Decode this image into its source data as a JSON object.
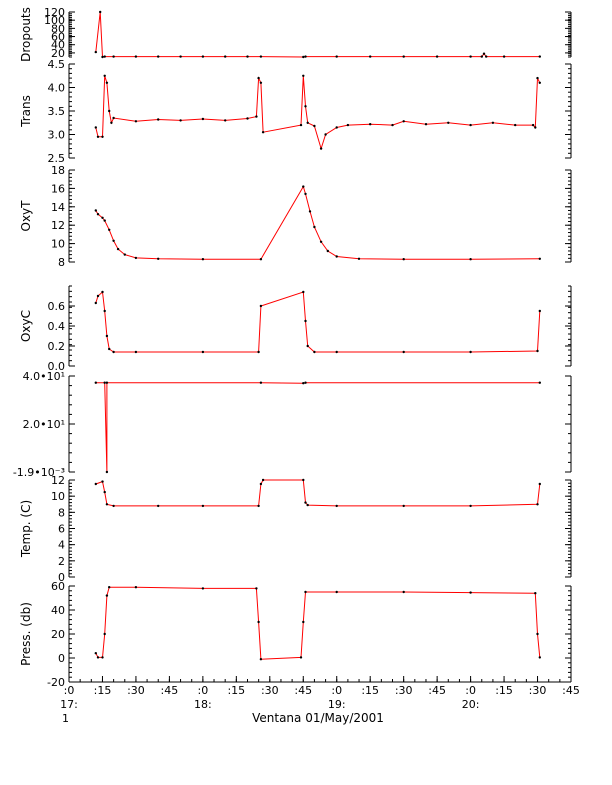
{
  "chart_data": {
    "type": "line",
    "caption": "Ventana 01/May/2001",
    "colors": {
      "trace": "#ff0000",
      "samples": "#000000",
      "axis": "#000000"
    },
    "x_axis": {
      "unit": "time of day",
      "range": [
        "17:00",
        "20:45"
      ],
      "ticks": [
        {
          "t": "17:00",
          "label": ":0",
          "hour_label": "17:"
        },
        {
          "t": "17:15",
          "label": ":15"
        },
        {
          "t": "17:30",
          "label": ":30"
        },
        {
          "t": "17:45",
          "label": ":45"
        },
        {
          "t": "18:00",
          "label": ":0",
          "hour_label": "18:"
        },
        {
          "t": "18:15",
          "label": ":15"
        },
        {
          "t": "18:30",
          "label": ":30"
        },
        {
          "t": "18:45",
          "label": ":45"
        },
        {
          "t": "19:00",
          "label": ":0",
          "hour_label": "19:"
        },
        {
          "t": "19:15",
          "label": ":15"
        },
        {
          "t": "19:30",
          "label": ":30"
        },
        {
          "t": "19:45",
          "label": ":45"
        },
        {
          "t": "20:00",
          "label": ":0",
          "hour_label": "20:"
        },
        {
          "t": "20:15",
          "label": ":15"
        },
        {
          "t": "20:30",
          "label": ":30"
        },
        {
          "t": "20:45",
          "label": ":45"
        }
      ],
      "subscript": "1"
    },
    "panels": [
      {
        "id": "dropouts",
        "ylabel": "Dropouts",
        "ylim": [
          10,
          120
        ],
        "ticks": [
          {
            "v": 120,
            "label": "120"
          },
          {
            "v": 100,
            "label": "100"
          },
          {
            "v": 80,
            "label": "80"
          },
          {
            "v": 60,
            "label": "60"
          },
          {
            "v": 40,
            "label": "40"
          },
          {
            "v": 20,
            "label": "20"
          }
        ],
        "series": [
          {
            "t": "17:12",
            "v": 22
          },
          {
            "t": "17:14",
            "v": 120
          },
          {
            "t": "17:15",
            "v": 10
          },
          {
            "t": "17:16",
            "v": 11
          },
          {
            "t": "17:20",
            "v": 11
          },
          {
            "t": "17:30",
            "v": 11
          },
          {
            "t": "17:40",
            "v": 11
          },
          {
            "t": "17:50",
            "v": 11
          },
          {
            "t": "18:00",
            "v": 11
          },
          {
            "t": "18:10",
            "v": 11
          },
          {
            "t": "18:20",
            "v": 11
          },
          {
            "t": "18:26",
            "v": 11
          },
          {
            "t": "18:45",
            "v": 8
          },
          {
            "t": "18:46",
            "v": 11
          },
          {
            "t": "19:00",
            "v": 11
          },
          {
            "t": "19:15",
            "v": 11
          },
          {
            "t": "19:30",
            "v": 11
          },
          {
            "t": "19:45",
            "v": 11
          },
          {
            "t": "20:00",
            "v": 11
          },
          {
            "t": "20:05",
            "v": 11
          },
          {
            "t": "20:06",
            "v": 18
          },
          {
            "t": "20:07",
            "v": 11
          },
          {
            "t": "20:15",
            "v": 11
          },
          {
            "t": "20:31",
            "v": 11
          }
        ]
      },
      {
        "id": "trans",
        "ylabel": "Trans",
        "ylim": [
          2.5,
          4.5
        ],
        "ticks": [
          {
            "v": 4.5,
            "label": "4.5"
          },
          {
            "v": 4.0,
            "label": "4.0"
          },
          {
            "v": 3.5,
            "label": "3.5"
          },
          {
            "v": 3.0,
            "label": "3.0"
          },
          {
            "v": 2.5,
            "label": "2.5"
          }
        ],
        "series": [
          {
            "t": "17:12",
            "v": 3.15
          },
          {
            "t": "17:13",
            "v": 2.95
          },
          {
            "t": "17:15",
            "v": 2.95
          },
          {
            "t": "17:16",
            "v": 4.25
          },
          {
            "t": "17:17",
            "v": 4.1
          },
          {
            "t": "17:18",
            "v": 3.5
          },
          {
            "t": "17:19",
            "v": 3.25
          },
          {
            "t": "17:20",
            "v": 3.35
          },
          {
            "t": "17:30",
            "v": 3.28
          },
          {
            "t": "17:40",
            "v": 3.32
          },
          {
            "t": "17:50",
            "v": 3.3
          },
          {
            "t": "18:00",
            "v": 3.33
          },
          {
            "t": "18:10",
            "v": 3.3
          },
          {
            "t": "18:20",
            "v": 3.34
          },
          {
            "t": "18:24",
            "v": 3.38
          },
          {
            "t": "18:25",
            "v": 4.2
          },
          {
            "t": "18:26",
            "v": 4.1
          },
          {
            "t": "18:27",
            "v": 3.05
          },
          {
            "t": "18:44",
            "v": 3.2
          },
          {
            "t": "18:45",
            "v": 4.25
          },
          {
            "t": "18:46",
            "v": 3.6
          },
          {
            "t": "18:47",
            "v": 3.25
          },
          {
            "t": "18:50",
            "v": 3.18
          },
          {
            "t": "18:53",
            "v": 2.7
          },
          {
            "t": "18:55",
            "v": 3.0
          },
          {
            "t": "19:00",
            "v": 3.15
          },
          {
            "t": "19:05",
            "v": 3.2
          },
          {
            "t": "19:15",
            "v": 3.22
          },
          {
            "t": "19:25",
            "v": 3.2
          },
          {
            "t": "19:30",
            "v": 3.28
          },
          {
            "t": "19:40",
            "v": 3.22
          },
          {
            "t": "19:50",
            "v": 3.25
          },
          {
            "t": "20:00",
            "v": 3.2
          },
          {
            "t": "20:10",
            "v": 3.25
          },
          {
            "t": "20:20",
            "v": 3.2
          },
          {
            "t": "20:28",
            "v": 3.2
          },
          {
            "t": "20:29",
            "v": 3.15
          },
          {
            "t": "20:30",
            "v": 4.2
          },
          {
            "t": "20:31",
            "v": 4.1
          }
        ]
      },
      {
        "id": "oxyt",
        "ylabel": "OxyT",
        "ylim": [
          8,
          18
        ],
        "ticks": [
          {
            "v": 18,
            "label": "18"
          },
          {
            "v": 16,
            "label": "16"
          },
          {
            "v": 14,
            "label": "14"
          },
          {
            "v": 12,
            "label": "12"
          },
          {
            "v": 10,
            "label": "10"
          },
          {
            "v": 8,
            "label": "8"
          }
        ],
        "series": [
          {
            "t": "17:12",
            "v": 13.6
          },
          {
            "t": "17:13",
            "v": 13.2
          },
          {
            "t": "17:15",
            "v": 12.8
          },
          {
            "t": "17:16",
            "v": 12.5
          },
          {
            "t": "17:18",
            "v": 11.5
          },
          {
            "t": "17:20",
            "v": 10.3
          },
          {
            "t": "17:22",
            "v": 9.4
          },
          {
            "t": "17:25",
            "v": 8.8
          },
          {
            "t": "17:30",
            "v": 8.45
          },
          {
            "t": "17:40",
            "v": 8.35
          },
          {
            "t": "18:00",
            "v": 8.3
          },
          {
            "t": "18:26",
            "v": 8.3
          },
          {
            "t": "18:45",
            "v": 16.2
          },
          {
            "t": "18:46",
            "v": 15.4
          },
          {
            "t": "18:48",
            "v": 13.5
          },
          {
            "t": "18:50",
            "v": 11.8
          },
          {
            "t": "18:53",
            "v": 10.2
          },
          {
            "t": "18:56",
            "v": 9.2
          },
          {
            "t": "19:00",
            "v": 8.6
          },
          {
            "t": "19:10",
            "v": 8.35
          },
          {
            "t": "19:30",
            "v": 8.3
          },
          {
            "t": "20:00",
            "v": 8.3
          },
          {
            "t": "20:31",
            "v": 8.35
          }
        ]
      },
      {
        "id": "oxyc",
        "ylabel": "OxyC",
        "ylim": [
          0,
          0.8
        ],
        "ticks": [
          {
            "v": 0.6,
            "label": "0.6"
          },
          {
            "v": 0.4,
            "label": "0.4"
          },
          {
            "v": 0.2,
            "label": "0.2"
          },
          {
            "v": 0.0,
            "label": "0.0"
          }
        ],
        "series": [
          {
            "t": "17:12",
            "v": 0.63
          },
          {
            "t": "17:13",
            "v": 0.7
          },
          {
            "t": "17:15",
            "v": 0.74
          },
          {
            "t": "17:16",
            "v": 0.55
          },
          {
            "t": "17:17",
            "v": 0.3
          },
          {
            "t": "17:18",
            "v": 0.17
          },
          {
            "t": "17:20",
            "v": 0.14
          },
          {
            "t": "17:30",
            "v": 0.14
          },
          {
            "t": "18:00",
            "v": 0.14
          },
          {
            "t": "18:25",
            "v": 0.14
          },
          {
            "t": "18:26",
            "v": 0.6
          },
          {
            "t": "18:45",
            "v": 0.74
          },
          {
            "t": "18:46",
            "v": 0.45
          },
          {
            "t": "18:47",
            "v": 0.2
          },
          {
            "t": "18:50",
            "v": 0.14
          },
          {
            "t": "19:00",
            "v": 0.14
          },
          {
            "t": "19:30",
            "v": 0.14
          },
          {
            "t": "20:00",
            "v": 0.14
          },
          {
            "t": "20:30",
            "v": 0.15
          },
          {
            "t": "20:31",
            "v": 0.55
          }
        ]
      },
      {
        "id": "unnamed",
        "ylabel": "",
        "ylim": [
          -0.0019,
          40
        ],
        "ticks": [
          {
            "v": 40,
            "label": "4.0•10¹"
          },
          {
            "v": 20,
            "label": "2.0•10¹"
          },
          {
            "v": -0.0019,
            "label": "-1.9•10⁻³"
          }
        ],
        "series": [
          {
            "t": "17:12",
            "v": 37.2
          },
          {
            "t": "17:16",
            "v": 37.2
          },
          {
            "t": "17:17",
            "v": -0.0019
          },
          {
            "t": "17:17",
            "v": 37.2
          },
          {
            "t": "18:26",
            "v": 37.2
          },
          {
            "t": "18:45",
            "v": 37.0
          },
          {
            "t": "18:46",
            "v": 37.2
          },
          {
            "t": "20:31",
            "v": 37.2
          }
        ]
      },
      {
        "id": "temp",
        "ylabel": "Temp. (C)",
        "ylim": [
          0,
          12
        ],
        "ticks": [
          {
            "v": 12,
            "label": "12"
          },
          {
            "v": 10,
            "label": "10"
          },
          {
            "v": 8,
            "label": "8"
          },
          {
            "v": 6,
            "label": "6"
          },
          {
            "v": 4,
            "label": "4"
          },
          {
            "v": 2,
            "label": "2"
          },
          {
            "v": 0,
            "label": "0"
          }
        ],
        "series": [
          {
            "t": "17:12",
            "v": 11.5
          },
          {
            "t": "17:15",
            "v": 11.8
          },
          {
            "t": "17:16",
            "v": 10.5
          },
          {
            "t": "17:17",
            "v": 9.0
          },
          {
            "t": "17:20",
            "v": 8.8
          },
          {
            "t": "17:40",
            "v": 8.8
          },
          {
            "t": "18:00",
            "v": 8.8
          },
          {
            "t": "18:25",
            "v": 8.8
          },
          {
            "t": "18:26",
            "v": 11.5
          },
          {
            "t": "18:27",
            "v": 12.1
          },
          {
            "t": "18:45",
            "v": 12.2
          },
          {
            "t": "18:46",
            "v": 9.2
          },
          {
            "t": "18:47",
            "v": 8.9
          },
          {
            "t": "19:00",
            "v": 8.8
          },
          {
            "t": "19:30",
            "v": 8.8
          },
          {
            "t": "20:00",
            "v": 8.8
          },
          {
            "t": "20:30",
            "v": 9.0
          },
          {
            "t": "20:31",
            "v": 11.5
          }
        ]
      },
      {
        "id": "press",
        "ylabel": "Press. (db)",
        "ylim": [
          -20,
          60
        ],
        "ticks": [
          {
            "v": 60,
            "label": "60"
          },
          {
            "v": 40,
            "label": "40"
          },
          {
            "v": 20,
            "label": "20"
          },
          {
            "v": 0,
            "label": "0"
          },
          {
            "v": -20,
            "label": "-20"
          }
        ],
        "series": [
          {
            "t": "17:12",
            "v": 4
          },
          {
            "t": "17:13",
            "v": 0.5
          },
          {
            "t": "17:15",
            "v": 0.5
          },
          {
            "t": "17:16",
            "v": 20
          },
          {
            "t": "17:17",
            "v": 52
          },
          {
            "t": "17:18",
            "v": 59
          },
          {
            "t": "17:30",
            "v": 59
          },
          {
            "t": "18:00",
            "v": 58
          },
          {
            "t": "18:24",
            "v": 58
          },
          {
            "t": "18:25",
            "v": 30
          },
          {
            "t": "18:26",
            "v": -1
          },
          {
            "t": "18:44",
            "v": 0.5
          },
          {
            "t": "18:45",
            "v": 30
          },
          {
            "t": "18:46",
            "v": 55
          },
          {
            "t": "19:00",
            "v": 55
          },
          {
            "t": "19:30",
            "v": 55
          },
          {
            "t": "20:00",
            "v": 54.5
          },
          {
            "t": "20:29",
            "v": 54
          },
          {
            "t": "20:30",
            "v": 20
          },
          {
            "t": "20:31",
            "v": 0.5
          }
        ]
      }
    ]
  }
}
